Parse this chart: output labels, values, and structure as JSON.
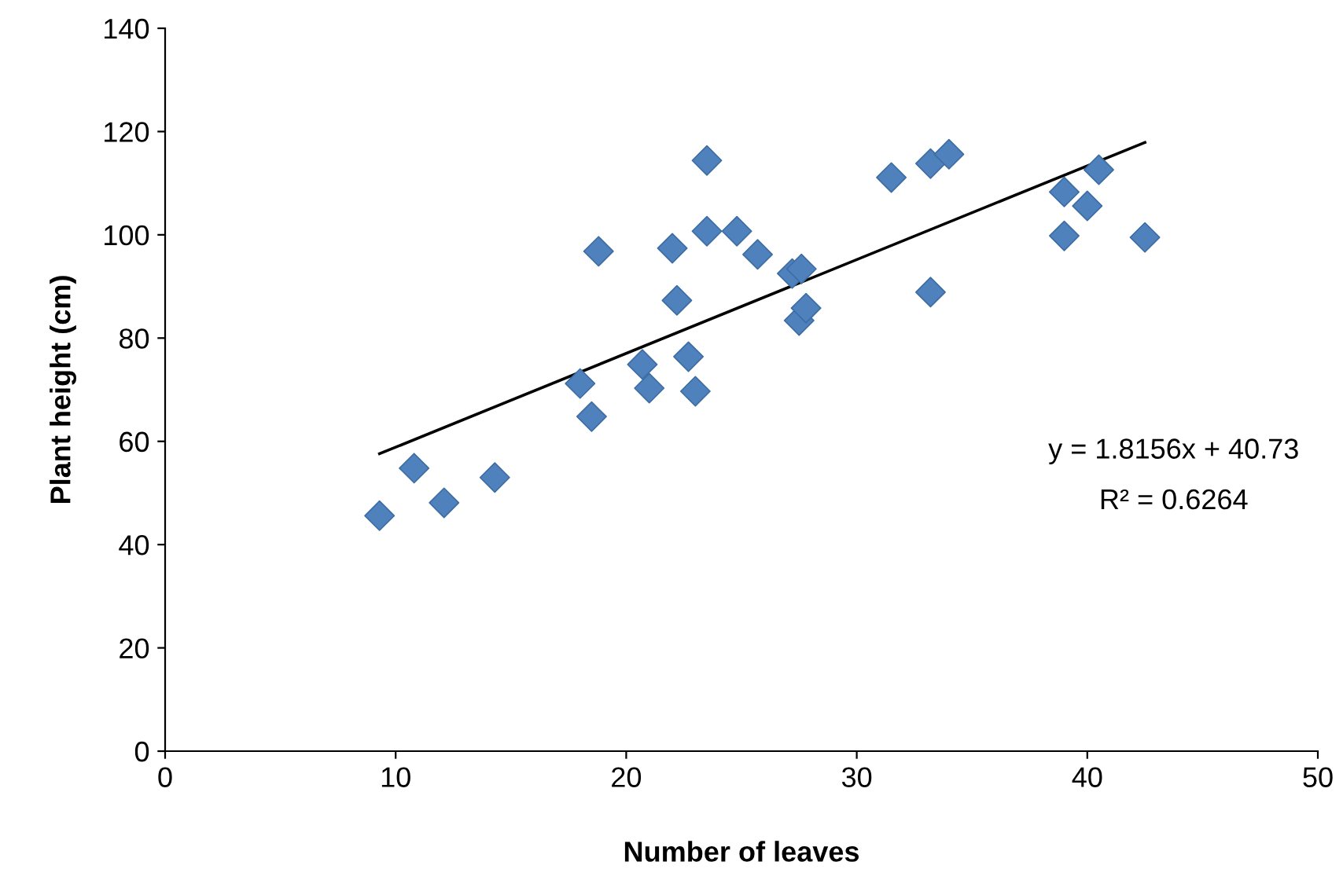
{
  "chart_data": {
    "type": "scatter",
    "xlabel": "Number of leaves",
    "ylabel": "Plant height (cm)",
    "xlim": [
      0,
      50
    ],
    "xticks": [
      0,
      10,
      20,
      30,
      40,
      50
    ],
    "ylim": [
      0,
      140
    ],
    "yticks": [
      0,
      20,
      40,
      60,
      80,
      100,
      120,
      140
    ],
    "grid": false,
    "legend": false,
    "series": [
      {
        "color": "#4f81bd",
        "marker": "diamond",
        "x": [
          9.3,
          10.8,
          12.1,
          14.3,
          18.0,
          18.5,
          18.8,
          20.7,
          21.0,
          22.0,
          22.2,
          22.7,
          23.0,
          23.5,
          23.5,
          24.8,
          25.7,
          27.2,
          27.6,
          27.5,
          27.8,
          31.5,
          33.2,
          33.2,
          34.0,
          39.0,
          39.0,
          40.0,
          40.5,
          42.5
        ],
        "values": [
          45.6,
          54.8,
          48.1,
          53.0,
          71.2,
          64.8,
          96.8,
          74.9,
          70.3,
          97.4,
          87.3,
          76.4,
          69.7,
          100.7,
          114.4,
          100.7,
          96.2,
          92.5,
          93.4,
          83.4,
          85.8,
          111.1,
          88.9,
          113.8,
          115.6,
          108.3,
          99.8,
          105.6,
          112.6,
          99.5
        ]
      },
      {
        "type": "line",
        "color": "#000000",
        "marker": "none",
        "line_style": "solid",
        "x": [
          9.3,
          42.5
        ],
        "values": [
          57.6,
          117.9
        ]
      }
    ],
    "annotations": [
      "y = 1.8156x + 40.73",
      "R² = 0.6264"
    ]
  }
}
